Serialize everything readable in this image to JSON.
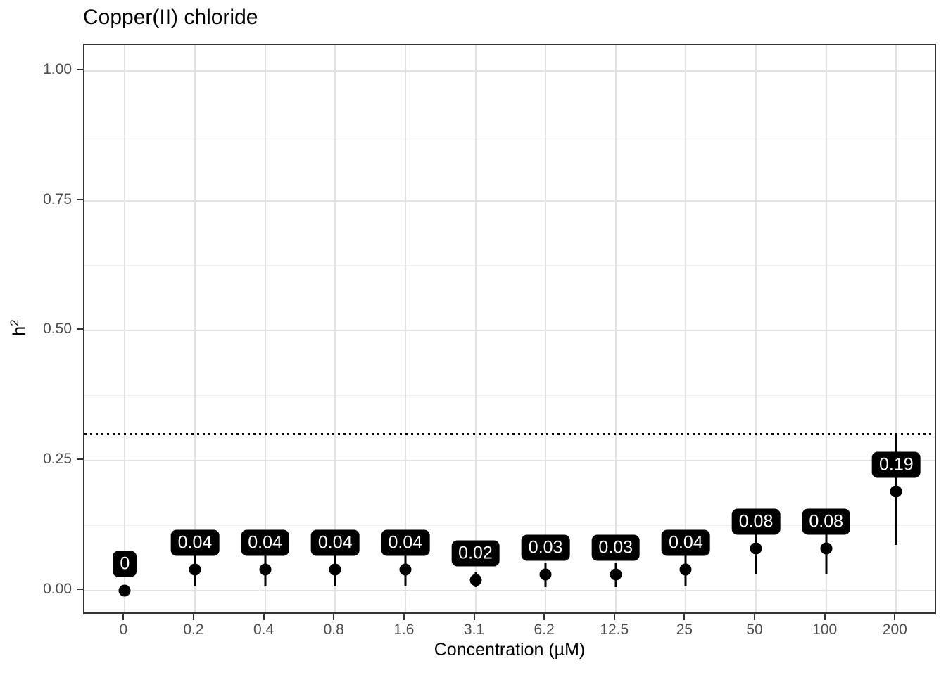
{
  "title": "Copper(II) chloride",
  "axes": {
    "x_label": "Concentration (µM)",
    "y_label": "h²",
    "y_label_base": "h",
    "y_label_exponent": "2"
  },
  "chart_data": {
    "type": "scatter",
    "title": "Copper(II) chloride",
    "xlabel": "Concentration (µM)",
    "ylabel": "h²",
    "categories": [
      "0",
      "0.2",
      "0.4",
      "0.8",
      "1.6",
      "3.1",
      "6.2",
      "12.5",
      "25",
      "50",
      "100",
      "200"
    ],
    "series": [
      {
        "name": "h2-estimate-pointrange",
        "values": [
          0,
          0.04,
          0.04,
          0.04,
          0.04,
          0.02,
          0.03,
          0.03,
          0.04,
          0.08,
          0.08,
          0.19
        ],
        "labels": [
          "0",
          "0.04",
          "0.04",
          "0.04",
          "0.04",
          "0.02",
          "0.03",
          "0.03",
          "0.04",
          "0.08",
          "0.08",
          "0.19"
        ],
        "error_lower": [
          0,
          0.008,
          0.008,
          0.008,
          0.008,
          0.006,
          0.006,
          0.006,
          0.008,
          0.032,
          0.032,
          0.087
        ],
        "error_upper": [
          0,
          0.072,
          0.072,
          0.072,
          0.072,
          0.034,
          0.054,
          0.054,
          0.072,
          0.128,
          0.128,
          0.299
        ]
      }
    ],
    "threshold_line": {
      "value": 0.3,
      "style": "dotted",
      "color": "#000000"
    },
    "ylim": [
      0,
      1
    ],
    "yticks": [
      0,
      0.25,
      0.5,
      0.75,
      1.0
    ],
    "ytick_labels": [
      "0.00",
      "0.25",
      "0.50",
      "0.75",
      "1.00"
    ],
    "y_minor_gridlines": [
      0.125,
      0.375,
      0.625,
      0.875
    ],
    "grid": true,
    "legend": "none"
  },
  "style": {
    "point_color": "#000000",
    "label_bg": "#000000",
    "label_text": "#ffffff",
    "grid_major": "#e2e2e2",
    "grid_minor": "#f0f0f0",
    "panel_border": "#333333",
    "tick_text": "#4d4d4d",
    "title_text": "#000000",
    "background": "#ffffff"
  }
}
